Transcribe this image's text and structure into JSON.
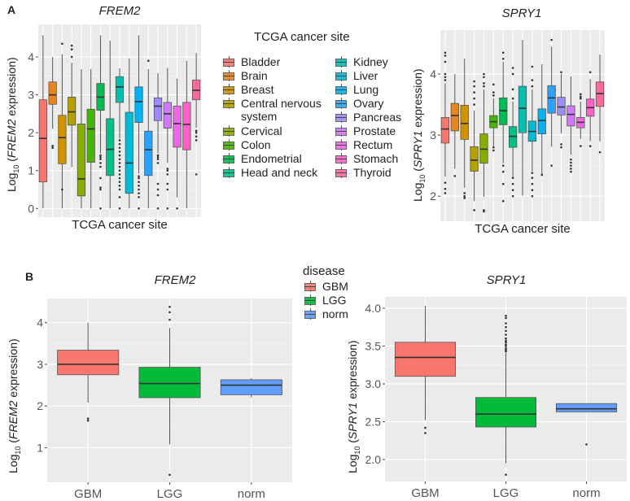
{
  "panel_a": {
    "letter": "A",
    "legend_title": "TCGA cancer site",
    "legend_items": [
      "Bladder",
      "Brain",
      "Breast",
      "Central nervous system",
      "Cervical",
      "Colon",
      "Endometrial",
      "Head and neck",
      "Kidney",
      "Liver",
      "Lung",
      "Ovary",
      "Pancreas",
      "Prostate",
      "Rectum",
      "Stomach",
      "Thyroid"
    ]
  },
  "panel_b": {
    "letter": "B",
    "legend_title": "disease",
    "legend_items": [
      "GBM",
      "LGG",
      "norm"
    ]
  },
  "axis_text": {
    "log_prefix": "Log",
    "log_sub": "10",
    "frem2": "FREM2",
    "spry1": "SPRY1",
    "expression_suffix": " expression)",
    "open_paren": " ("
  },
  "chart_data": [
    {
      "id": "a_frem2",
      "type": "boxplot",
      "title": "FREM2",
      "xlabel": "TCGA cancer site",
      "ylabel": "Log10 (FREM2 expression)",
      "ylim": [
        -0.23,
        4.86
      ],
      "yticks": [
        0,
        1,
        2,
        3,
        4
      ],
      "ytick_labels": [
        "0",
        "1",
        "2",
        "3",
        "4"
      ],
      "grid": true,
      "legend": "right",
      "categories": [
        "Bladder",
        "Brain",
        "Breast",
        "Central nervous system",
        "Cervical",
        "Colon",
        "Endometrial",
        "Head and neck",
        "Kidney",
        "Liver",
        "Lung",
        "Ovary",
        "Pancreas",
        "Prostate",
        "Rectum",
        "Stomach",
        "Thyroid"
      ],
      "colors": [
        "#F8766D",
        "#E7851E",
        "#D09400",
        "#B2A100",
        "#89AC00",
        "#45B500",
        "#00BC51",
        "#00C087",
        "#00C0B2",
        "#00BCD6",
        "#00B3F2",
        "#29A3FF",
        "#9C8DFF",
        "#D277FF",
        "#F166E8",
        "#FF61C7",
        "#FF689E"
      ],
      "boxes": [
        {
          "min": 0,
          "q1": 0.7,
          "median": 1.85,
          "q3": 2.87,
          "max": 4.57,
          "outliers": []
        },
        {
          "min": 2.1,
          "q1": 2.75,
          "median": 3.0,
          "q3": 3.34,
          "max": 4.0,
          "outliers": [
            1.65,
            1.6
          ]
        },
        {
          "min": 0,
          "q1": 1.18,
          "median": 1.87,
          "q3": 2.46,
          "max": 4.07,
          "outliers": [
            4.35,
            0.5
          ]
        },
        {
          "min": 1.1,
          "q1": 2.2,
          "median": 2.55,
          "q3": 2.94,
          "max": 3.85,
          "outliers": [
            4.3,
            4.2,
            4.0
          ]
        },
        {
          "min": 0,
          "q1": 0.33,
          "median": 0.78,
          "q3": 2.23,
          "max": 3.68,
          "outliers": []
        },
        {
          "min": 0,
          "q1": 1.22,
          "median": 2.1,
          "q3": 2.62,
          "max": 3.68,
          "outliers": []
        },
        {
          "min": 1.45,
          "q1": 2.59,
          "median": 2.94,
          "q3": 3.3,
          "max": 4.57,
          "outliers": [
            1.4,
            1.35,
            1.3,
            1.2,
            1.1,
            0.8,
            0.55,
            0.5,
            0
          ]
        },
        {
          "min": 0,
          "q1": 0.87,
          "median": 1.56,
          "q3": 2.37,
          "max": 4.43,
          "outliers": []
        },
        {
          "min": 1.85,
          "q1": 2.8,
          "median": 3.21,
          "q3": 3.48,
          "max": 3.7,
          "outliers": [
            1.8,
            1.7,
            1.6,
            1.5,
            1.4,
            1.3,
            1.2,
            1.1,
            1.0,
            0.9,
            0.8,
            0.7,
            0.6,
            0.5,
            0.3,
            0
          ]
        },
        {
          "min": 0,
          "q1": 0.4,
          "median": 1.2,
          "q3": 2.54,
          "max": 3.96,
          "outliers": []
        },
        {
          "min": 0.92,
          "q1": 2.27,
          "median": 2.82,
          "q3": 3.21,
          "max": 4.57,
          "outliers": [
            0.85,
            0.8,
            0.7,
            0.6,
            0.5,
            0.4,
            0.3,
            0
          ]
        },
        {
          "min": 0,
          "q1": 0.87,
          "median": 1.55,
          "q3": 2.04,
          "max": 3.68,
          "outliers": [
            3.9
          ]
        },
        {
          "min": 1.45,
          "q1": 2.32,
          "median": 2.7,
          "q3": 2.92,
          "max": 3.57,
          "outliers": [
            1.4,
            1.35,
            1.3,
            1.2,
            0.65,
            0.5,
            0.35,
            0
          ]
        },
        {
          "min": 1.2,
          "q1": 2.12,
          "median": 2.5,
          "q3": 2.8,
          "max": 3.71,
          "outliers": [
            1.05,
            1.0,
            0.9,
            0.65,
            0.5,
            0
          ]
        },
        {
          "min": 0.29,
          "q1": 1.62,
          "median": 2.24,
          "q3": 2.7,
          "max": 3.43,
          "outliers": [
            0
          ]
        },
        {
          "min": 0,
          "q1": 1.55,
          "median": 2.22,
          "q3": 2.8,
          "max": 3.9,
          "outliers": []
        },
        {
          "min": 2.13,
          "q1": 2.87,
          "median": 3.12,
          "q3": 3.39,
          "max": 4.1,
          "outliers": [
            2.05,
            2.0,
            1.9,
            1.8,
            0.9
          ]
        }
      ]
    },
    {
      "id": "a_spry1",
      "type": "boxplot",
      "title": "SPRY1",
      "xlabel": "TCGA cancer site",
      "ylabel": "Log10 (SPRY1 expression)",
      "ylim": [
        1.59,
        4.72
      ],
      "yticks": [
        2,
        3,
        4
      ],
      "ytick_labels": [
        "2",
        "3",
        "4"
      ],
      "grid": true,
      "categories": [
        "Bladder",
        "Brain",
        "Breast",
        "Central nervous system",
        "Cervical",
        "Colon",
        "Endometrial",
        "Head and neck",
        "Kidney",
        "Liver",
        "Lung",
        "Ovary",
        "Pancreas",
        "Prostate",
        "Rectum",
        "Stomach",
        "Thyroid"
      ],
      "colors": [
        "#F8766D",
        "#E7851E",
        "#D09400",
        "#B2A100",
        "#89AC00",
        "#45B500",
        "#00BC51",
        "#00C087",
        "#00C0B2",
        "#00BCD6",
        "#00B3F2",
        "#29A3FF",
        "#9C8DFF",
        "#D277FF",
        "#F166E8",
        "#FF61C7",
        "#FF689E"
      ],
      "boxes": [
        {
          "min": 2.32,
          "q1": 2.87,
          "median": 3.1,
          "q3": 3.29,
          "max": 3.85,
          "outliers": [
            4.35,
            4.3,
            4.2,
            4.0,
            3.95,
            3.9,
            2.22,
            2.12,
            2.05
          ]
        },
        {
          "min": 2.45,
          "q1": 3.07,
          "median": 3.32,
          "q3": 3.52,
          "max": 4.0,
          "outliers": [
            2.33
          ]
        },
        {
          "min": 2.14,
          "q1": 2.93,
          "median": 3.19,
          "q3": 3.49,
          "max": 4.25,
          "outliers": [
            2.05,
            2.0,
            1.97
          ]
        },
        {
          "min": 1.92,
          "q1": 2.41,
          "median": 2.59,
          "q3": 2.81,
          "max": 3.4,
          "outliers": [
            3.88,
            3.8,
            3.7,
            3.6,
            3.5,
            1.77
          ]
        },
        {
          "min": 1.99,
          "q1": 2.54,
          "median": 2.77,
          "q3": 3.02,
          "max": 3.75,
          "outliers": [
            4.0,
            3.95,
            3.85,
            3.8,
            1.77,
            1.75
          ]
        },
        {
          "min": 2.81,
          "q1": 3.12,
          "median": 3.22,
          "q3": 3.32,
          "max": 3.6,
          "outliers": [
            3.83,
            3.7,
            3.65,
            2.8,
            2.75
          ]
        },
        {
          "min": 2.54,
          "q1": 3.17,
          "median": 3.4,
          "q3": 3.61,
          "max": 4.2,
          "outliers": [
            4.35,
            4.25,
            2.5,
            2.4,
            2.2,
            1.92
          ]
        },
        {
          "min": 2.32,
          "q1": 2.8,
          "median": 2.98,
          "q3": 3.14,
          "max": 3.55,
          "outliers": [
            4.1,
            4.0,
            3.75,
            3.6,
            2.3,
            2.2,
            2.1,
            2.0
          ]
        },
        {
          "min": 2.01,
          "q1": 3.04,
          "median": 3.44,
          "q3": 3.8,
          "max": 4.56,
          "outliers": []
        },
        {
          "min": 2.41,
          "q1": 2.9,
          "median": 3.06,
          "q3": 3.23,
          "max": 3.75,
          "outliers": [
            4.12,
            3.9,
            3.8,
            2.38,
            2.3,
            2.2,
            2.1,
            2.0
          ]
        },
        {
          "min": 2.36,
          "q1": 3.02,
          "median": 3.24,
          "q3": 3.43,
          "max": 4.16,
          "outliers": [
            2.35
          ]
        },
        {
          "min": 2.81,
          "q1": 3.36,
          "median": 3.61,
          "q3": 3.81,
          "max": 4.45,
          "outliers": [
            4.56,
            2.5
          ]
        },
        {
          "min": 3.03,
          "q1": 3.33,
          "median": 3.46,
          "q3": 3.62,
          "max": 4.0,
          "outliers": [
            4.03,
            2.85,
            2.8
          ]
        },
        {
          "min": 2.68,
          "q1": 3.15,
          "median": 3.34,
          "q3": 3.48,
          "max": 3.96,
          "outliers": [
            2.6,
            2.55,
            2.5,
            2.45,
            2.4
          ]
        },
        {
          "min": 2.94,
          "q1": 3.12,
          "median": 3.21,
          "q3": 3.29,
          "max": 3.55,
          "outliers": [
            3.67,
            3.63,
            3.6,
            2.82
          ]
        },
        {
          "min": 2.9,
          "q1": 3.31,
          "median": 3.45,
          "q3": 3.59,
          "max": 3.92,
          "outliers": [
            4.03,
            2.82
          ]
        },
        {
          "min": 2.9,
          "q1": 3.47,
          "median": 3.68,
          "q3": 3.87,
          "max": 4.32,
          "outliers": [
            2.72
          ]
        }
      ]
    },
    {
      "id": "b_frem2",
      "type": "boxplot",
      "title": "FREM2",
      "xlabel": "",
      "ylabel": "Log10 (FREM2 expression)",
      "ylim": [
        0.17,
        4.58
      ],
      "yticks": [
        1,
        2,
        3,
        4
      ],
      "ytick_labels": [
        "1",
        "2",
        "3",
        "4"
      ],
      "grid": true,
      "legend": "top-right",
      "categories": [
        "GBM",
        "LGG",
        "norm"
      ],
      "xtick_labels": [
        "GBM",
        "LGG",
        "norm"
      ],
      "colors": [
        "#F8766D",
        "#00BA38",
        "#619CFF"
      ],
      "boxes": [
        {
          "min": 2.08,
          "q1": 2.75,
          "median": 3.0,
          "q3": 3.34,
          "max": 4.0,
          "outliers": [
            1.7,
            1.65
          ]
        },
        {
          "min": 1.08,
          "q1": 2.2,
          "median": 2.54,
          "q3": 2.93,
          "max": 3.87,
          "outliers": [
            4.38,
            4.25,
            4.07,
            0.35
          ]
        },
        {
          "min": 2.21,
          "q1": 2.27,
          "median": 2.5,
          "q3": 2.63,
          "max": 2.67,
          "outliers": []
        }
      ]
    },
    {
      "id": "b_spry1",
      "type": "boxplot",
      "title": "SPRY1",
      "xlabel": "",
      "ylabel": "Log10 (SPRY1 expression)",
      "ylim": [
        1.71,
        4.15
      ],
      "yticks": [
        2.0,
        2.5,
        3.0,
        3.5,
        4.0
      ],
      "ytick_labels": [
        "2.0",
        "2.5",
        "3.0",
        "3.5",
        "4.0"
      ],
      "grid": true,
      "categories": [
        "GBM",
        "LGG",
        "norm"
      ],
      "xtick_labels": [
        "GBM",
        "LGG",
        "norm"
      ],
      "colors": [
        "#F8766D",
        "#00BA38",
        "#619CFF"
      ],
      "boxes": [
        {
          "min": 2.52,
          "q1": 3.1,
          "median": 3.35,
          "q3": 3.55,
          "max": 4.03,
          "outliers": [
            2.42,
            2.35
          ]
        },
        {
          "min": 1.95,
          "q1": 2.43,
          "median": 2.6,
          "q3": 2.82,
          "max": 3.41,
          "outliers": [
            3.9,
            3.87,
            3.8,
            3.75,
            3.7,
            3.65,
            3.6,
            3.57,
            3.55,
            3.52,
            3.5,
            3.47,
            3.45,
            3.43,
            1.8
          ]
        },
        {
          "min": 2.63,
          "q1": 2.63,
          "median": 2.67,
          "q3": 2.74,
          "max": 2.74,
          "outliers": [
            2.2
          ]
        }
      ]
    }
  ]
}
